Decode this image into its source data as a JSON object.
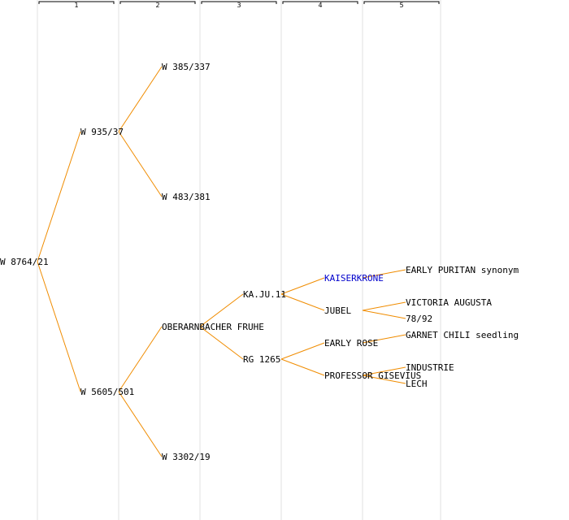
{
  "generation_labels": [
    "1",
    "2",
    "3",
    "4",
    "5"
  ],
  "colors": {
    "edge": "#f08c00",
    "column_line": "#e2e2e2",
    "bracket": "#000000",
    "text": "#000000",
    "link_text": "#0000cc"
  },
  "pedigree": {
    "root": {
      "label": "W 8764/21"
    },
    "gen1": [
      {
        "label": "W 935/37"
      },
      {
        "label": "W 5605/501"
      }
    ],
    "gen2": [
      {
        "label": "W 385/337"
      },
      {
        "label": "W 483/381"
      },
      {
        "label": "OBERARNBACHER FRUHE"
      },
      {
        "label": "W 3302/19"
      }
    ],
    "gen3": [
      {
        "label": "KA.JU.11"
      },
      {
        "label": "RG 1265"
      }
    ],
    "gen4": [
      {
        "label": "KAISERKRONE",
        "link": true
      },
      {
        "label": "JUBEL"
      },
      {
        "label": "EARLY ROSE"
      },
      {
        "label": "PROFESSOR GISEVIUS"
      }
    ],
    "gen5": [
      {
        "label": "EARLY PURITAN synonym"
      },
      {
        "label": "VICTORIA AUGUSTA"
      },
      {
        "label": "78/92"
      },
      {
        "label": "GARNET CHILI seedling"
      },
      {
        "label": "INDUSTRIE"
      },
      {
        "label": "LECH"
      }
    ]
  }
}
